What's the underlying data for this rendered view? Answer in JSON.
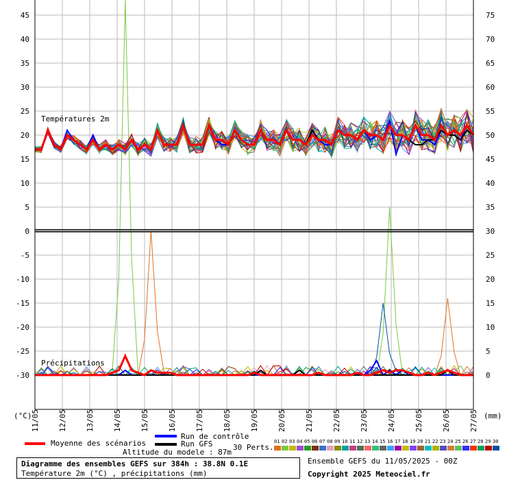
{
  "chart_data": {
    "type": "line",
    "title": "Diagramme des ensembles GEFS sur 384h : 38.8N 0.1E",
    "subtitle": "Température 2m (°C) , précipitations (mm)",
    "left_axis": {
      "unit_label": "(°C)",
      "ticks": [
        45,
        40,
        35,
        30,
        25,
        20,
        15,
        10,
        5,
        0,
        -5,
        -10,
        -15,
        -20,
        -25,
        -30
      ],
      "range": [
        -30,
        45
      ]
    },
    "right_axis": {
      "unit_label": "(mm)",
      "ticks": [
        75,
        70,
        65,
        60,
        55,
        50,
        45,
        40,
        35,
        30,
        25,
        20,
        15,
        10,
        5,
        0
      ],
      "range": [
        0,
        75
      ]
    },
    "x_labels": [
      "11/05",
      "12/05",
      "13/05",
      "14/05",
      "15/05",
      "16/05",
      "17/05",
      "18/05",
      "19/05",
      "20/05",
      "21/05",
      "22/05",
      "23/05",
      "24/05",
      "25/05",
      "26/05",
      "27/05"
    ],
    "panel_labels": {
      "temperature": "Températures 2m",
      "precipitation": "Précipitations"
    },
    "grid": true,
    "series": [
      {
        "name": "Moyenne des scénarios",
        "color": "#ff0000",
        "temperature": [
          17,
          17,
          21,
          18,
          17,
          20,
          19,
          18,
          17,
          19,
          17,
          18,
          17,
          18,
          17,
          19,
          17,
          18,
          17,
          21,
          18,
          18,
          18,
          22,
          18,
          18,
          18,
          22,
          19,
          19,
          18,
          21,
          19,
          18,
          18,
          21,
          19,
          19,
          18,
          21,
          19,
          19,
          18,
          20,
          19,
          19,
          18,
          21,
          20,
          20,
          19,
          21,
          20,
          20,
          19,
          22,
          20,
          20,
          19,
          22,
          20,
          20,
          19,
          22,
          20,
          21,
          20,
          22,
          20
        ],
        "precip": [
          0,
          0,
          0,
          0,
          0,
          0,
          0,
          0,
          0,
          0,
          0,
          0,
          0.5,
          1,
          4,
          1,
          0.5,
          0,
          1,
          0.5,
          0.5,
          0.5,
          0,
          0,
          0,
          0,
          0,
          0,
          0,
          0,
          0,
          0,
          0,
          0,
          0.5,
          0,
          0,
          0,
          0,
          0,
          0,
          0,
          0,
          0,
          0.5,
          0,
          0,
          0,
          0,
          0,
          0.5,
          0,
          0,
          0.5,
          1,
          0.5,
          1,
          1,
          0.5,
          0,
          0,
          0.5,
          0,
          0.5,
          1,
          0.5,
          0,
          0,
          0
        ]
      },
      {
        "name": "Run de contrôle",
        "color": "#0000ff",
        "temperature": [
          17,
          17,
          21,
          18,
          17,
          21,
          19,
          18,
          17,
          20,
          17,
          18,
          17,
          18,
          17,
          19,
          17,
          18,
          17,
          21,
          18,
          18,
          18,
          22,
          18,
          18,
          18,
          22,
          19,
          18,
          18,
          21,
          19,
          18,
          18,
          21,
          19,
          19,
          18,
          21,
          19,
          19,
          18,
          21,
          19,
          18,
          18,
          21,
          20,
          20,
          19,
          21,
          19,
          20,
          19,
          23,
          16,
          20,
          19,
          22,
          19,
          19,
          18,
          21,
          20,
          20,
          19,
          22,
          20
        ],
        "precip": [
          0,
          0,
          0,
          0,
          0,
          0,
          0,
          0,
          0,
          0,
          0,
          0,
          0,
          0,
          1,
          0,
          0,
          0,
          0,
          0,
          0,
          0,
          0,
          0,
          0,
          0,
          0,
          0,
          0,
          0,
          0,
          0,
          0,
          0,
          0,
          0,
          0,
          0,
          0,
          0,
          0,
          0,
          0,
          0,
          0,
          0,
          0,
          0,
          0,
          0,
          0,
          0,
          1,
          3,
          0,
          1,
          0,
          1,
          0,
          0,
          0,
          0,
          0,
          0,
          0,
          0,
          0,
          0,
          0
        ]
      },
      {
        "name": "Run GFS",
        "color": "#000000",
        "temperature": [
          17,
          17,
          21,
          18,
          17,
          20,
          19,
          18,
          17,
          19,
          17,
          18,
          17,
          18,
          17,
          19,
          17,
          18,
          17,
          21,
          18,
          18,
          18,
          22,
          18,
          18,
          18,
          22,
          19,
          19,
          18,
          21,
          19,
          18,
          18,
          21,
          19,
          19,
          18,
          21,
          19,
          19,
          18,
          21,
          19,
          19,
          18,
          21,
          20,
          20,
          19,
          21,
          20,
          20,
          19,
          22,
          20,
          20,
          19,
          18,
          18,
          19,
          19,
          21,
          20,
          20,
          19,
          21,
          20
        ],
        "precip": [
          0,
          0,
          0,
          0,
          0,
          0,
          0,
          0,
          0,
          0,
          0,
          0,
          0,
          0,
          0,
          0,
          0,
          0,
          0,
          0,
          0,
          0,
          0,
          0,
          0,
          0,
          0,
          0,
          0,
          0,
          0,
          0,
          0,
          0,
          0,
          1,
          0,
          0,
          0,
          0,
          0,
          1,
          0,
          0,
          0,
          0,
          0,
          0,
          0,
          0,
          0,
          0,
          0,
          0,
          0,
          0,
          0,
          0,
          0,
          0,
          0,
          0,
          0,
          0,
          1,
          0,
          0,
          0,
          0
        ]
      }
    ],
    "members_label": "30 Perts.",
    "members": [
      "01",
      "02",
      "03",
      "04",
      "05",
      "06",
      "07",
      "08",
      "09",
      "10",
      "11",
      "12",
      "13",
      "14",
      "15",
      "16",
      "17",
      "18",
      "19",
      "20",
      "21",
      "22",
      "23",
      "24",
      "25",
      "26",
      "27",
      "28",
      "29",
      "30"
    ],
    "member_colors": [
      "#e07020",
      "#7ac940",
      "#c8b400",
      "#9a4ec8",
      "#2a9a2a",
      "#803000",
      "#3a70c8",
      "#e0a0c0",
      "#8c8c00",
      "#00a0a0",
      "#c04080",
      "#507050",
      "#ff6666",
      "#30c080",
      "#606060",
      "#40a0ff",
      "#a000a0",
      "#c0c000",
      "#8040ff",
      "#a06030",
      "#00c0c0",
      "#b0b000",
      "#5050c0",
      "#d08040",
      "#60c060",
      "#3030ff",
      "#ff3000",
      "#00a060",
      "#c00000",
      "#0050a0"
    ],
    "peaks": [
      {
        "member": 1,
        "day": 3.3,
        "mm": 80
      },
      {
        "member": 0,
        "day": 4.35,
        "mm": 30
      },
      {
        "member": 29,
        "day": 12.75,
        "mm": 15
      },
      {
        "member": 1,
        "day": 13.0,
        "mm": 35
      },
      {
        "member": 0,
        "day": 15.0,
        "mm": 16
      }
    ]
  },
  "legend": {
    "mean": "Moyenne des scénarios",
    "control": "Run de contrôle",
    "gfs": "Run GFS",
    "altitude": "Altitude du modele : 87m"
  },
  "footer": {
    "title": "Diagramme des ensembles GEFS sur 384h : 38.8N 0.1E",
    "subtitle": "Température 2m (°C) , précipitations (mm)",
    "ensemble": "Ensemble GEFS du 11/05/2025 - 00Z",
    "copyright": "Copyright 2025 Meteociel.fr"
  }
}
